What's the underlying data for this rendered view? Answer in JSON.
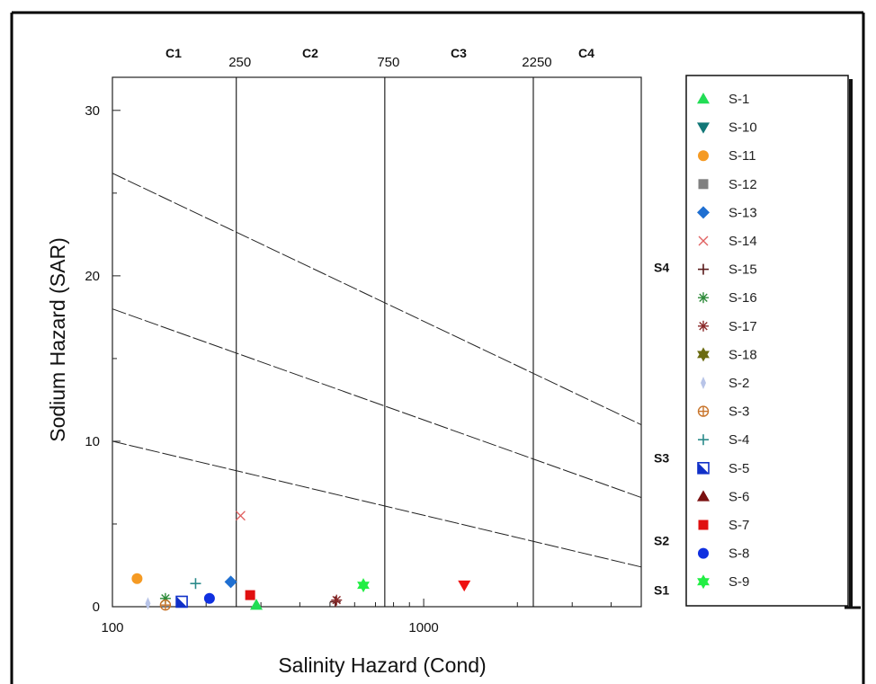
{
  "chart_data": {
    "type": "scatter",
    "xlabel": "Salinity Hazard (Cond)",
    "ylabel": "Sodium Hazard (SAR)",
    "x_scale": "log",
    "xlim": [
      100,
      5000
    ],
    "ylim": [
      0,
      32
    ],
    "x_ticks": [
      {
        "value": 100,
        "label": "100"
      },
      {
        "value": 1000,
        "label": "1000"
      }
    ],
    "y_ticks": [
      {
        "value": 0,
        "label": "0"
      },
      {
        "value": 10,
        "label": "10"
      },
      {
        "value": 20,
        "label": "20"
      },
      {
        "value": 30,
        "label": "30"
      }
    ],
    "salinity_classes": [
      {
        "label": "C1",
        "from": 100,
        "to": 250
      },
      {
        "label": "C2",
        "from": 250,
        "to": 750
      },
      {
        "label": "C3",
        "from": 750,
        "to": 2250
      },
      {
        "label": "C4",
        "from": 2250,
        "to": 5000
      }
    ],
    "salinity_boundaries": [
      {
        "value": 250,
        "label": "250"
      },
      {
        "value": 750,
        "label": "750"
      },
      {
        "value": 2250,
        "label": "2250"
      }
    ],
    "sodium_class_lines": [
      {
        "p1": [
          100,
          10
        ],
        "p2": [
          5000,
          2.4
        ]
      },
      {
        "p1": [
          100,
          18
        ],
        "p2": [
          5000,
          6.6
        ]
      },
      {
        "p1": [
          100,
          26.2
        ],
        "p2": [
          5000,
          11
        ]
      }
    ],
    "sodium_classes": [
      {
        "label": "S4",
        "y": 20.5
      },
      {
        "label": "S3",
        "y": 9.0
      },
      {
        "label": "S2",
        "y": 4.0
      },
      {
        "label": "S1",
        "y": 1.0
      }
    ],
    "legend_position": "right",
    "series": [
      {
        "name": "S-1",
        "marker": "triangle-up",
        "color": "#22dd55",
        "x": 290,
        "y": 0.1
      },
      {
        "name": "S-10",
        "marker": "triangle-down",
        "color": "#117777",
        "x": null,
        "y": null
      },
      {
        "name": "S-11",
        "marker": "circle",
        "color": "#f59a23",
        "x": 120,
        "y": 1.7
      },
      {
        "name": "S-12",
        "marker": "square",
        "color": "#808080",
        "x": null,
        "y": null
      },
      {
        "name": "S-13",
        "marker": "diamond",
        "color": "#1f6fd1",
        "x": 240,
        "y": 1.5
      },
      {
        "name": "S-14",
        "marker": "x",
        "color": "#e06060",
        "x": 258,
        "y": 5.5
      },
      {
        "name": "S-15",
        "marker": "plus",
        "color": "#5a1a1a",
        "x": 520,
        "y": 0.3
      },
      {
        "name": "S-16",
        "marker": "asterisk",
        "color": "#2e8b3a",
        "x": 148,
        "y": 0.5
      },
      {
        "name": "S-17",
        "marker": "asterisk",
        "color": "#8b2a2a",
        "x": 525,
        "y": 0.4
      },
      {
        "name": "S-18",
        "marker": "star",
        "color": "#6b6b10",
        "x": null,
        "y": null
      },
      {
        "name": "S-2",
        "marker": "thin-diamond",
        "color": "#b8c4e8",
        "x": 130,
        "y": 0.2
      },
      {
        "name": "S-3",
        "marker": "circle-plus",
        "color": "#c8742a",
        "x": 148,
        "y": 0.1
      },
      {
        "name": "S-4",
        "marker": "plus",
        "color": "#2a8a8a",
        "x": 185,
        "y": 1.4
      },
      {
        "name": "S-5",
        "marker": "half-square",
        "color": "#1030c8",
        "x": 167,
        "y": 0.3
      },
      {
        "name": "S-6",
        "marker": "triangle-up",
        "color": "#7a1010",
        "x": null,
        "y": null
      },
      {
        "name": "S-7",
        "marker": "square",
        "color": "#e01010",
        "x": 277,
        "y": 0.7
      },
      {
        "name": "S-8",
        "marker": "circle",
        "color": "#1030e0",
        "x": 205,
        "y": 0.5
      },
      {
        "name": "S-9",
        "marker": "star",
        "color": "#22ee44",
        "x": 640,
        "y": 1.3
      }
    ],
    "extra_points": [
      {
        "marker": "triangle-down",
        "color": "#ee1111",
        "x": 1350,
        "y": 1.3
      }
    ]
  }
}
